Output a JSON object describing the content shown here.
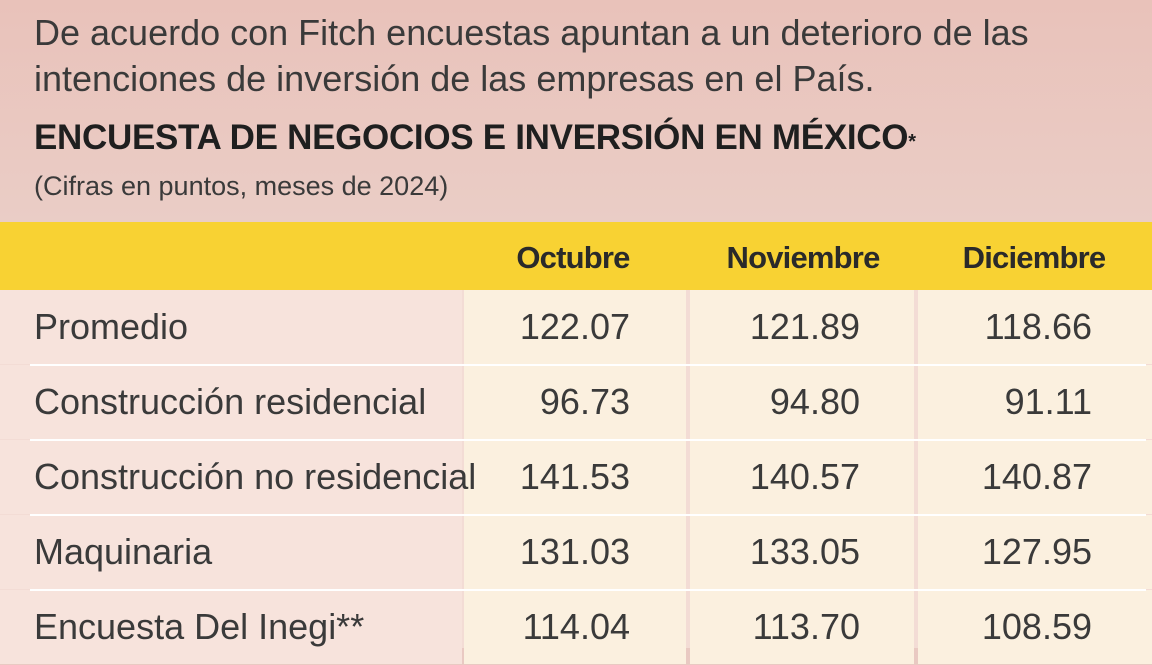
{
  "intro": "De acuerdo con Fitch encuestas apuntan a un deterioro de las intenciones de inversión de las empresas en el País.",
  "chart_data": {
    "type": "table",
    "title": "ENCUESTA DE NEGOCIOS E INVERSIÓN EN MÉXICO",
    "title_mark": "*",
    "subtitle": "(Cifras en puntos, meses de 2024)",
    "columns": [
      "Octubre",
      "Noviembre",
      "Diciembre"
    ],
    "rows": [
      {
        "label": "Promedio",
        "values": [
          "122.07",
          "121.89",
          "118.66"
        ]
      },
      {
        "label": "Construcción residencial",
        "values": [
          "96.73",
          "94.80",
          "91.11"
        ]
      },
      {
        "label": "Construcción no residencial",
        "values": [
          "141.53",
          "140.57",
          "140.87"
        ]
      },
      {
        "label": "Maquinaria",
        "values": [
          "131.03",
          "133.05",
          "127.95"
        ]
      },
      {
        "label": "Encuesta Del Inegi**",
        "values": [
          "114.04",
          "113.70",
          "108.59"
        ]
      }
    ]
  },
  "colors": {
    "header_bg": "#e9c2ba",
    "band": "#f8d233",
    "label_cell": "#f7e3dc",
    "value_cell": "#fbf0df"
  }
}
